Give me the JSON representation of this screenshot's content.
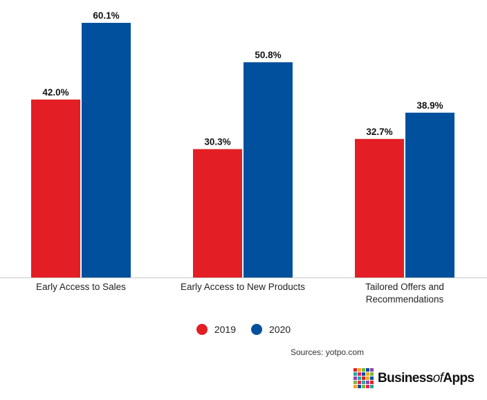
{
  "chart_data": {
    "type": "bar",
    "categories": [
      [
        "Early Access to Sales"
      ],
      [
        "Early Access to New Products"
      ],
      [
        "Tailored Offers and",
        "Recommendations"
      ]
    ],
    "series": [
      {
        "name": "2019",
        "color": "#e31e24",
        "values": [
          42.0,
          30.3,
          32.7
        ],
        "labels": [
          "42.0%",
          "30.3%",
          "32.7%"
        ]
      },
      {
        "name": "2020",
        "color": "#00509e",
        "values": [
          60.1,
          50.8,
          38.9
        ],
        "labels": [
          "60.1%",
          "50.8%",
          "38.9%"
        ]
      }
    ],
    "ylim": [
      0,
      65
    ],
    "grid": false,
    "legend_position": "bottom"
  },
  "source": "Sources: yotpo.com",
  "brand": {
    "part1": "Business",
    "part2": "of",
    "part3": "Apps"
  },
  "logo_colors": [
    "#e31e24",
    "#f5a623",
    "#7cb342",
    "#00509e",
    "#8e44ad",
    "#26a69a",
    "#e91e63",
    "#00509e",
    "#f5a623",
    "#7cb342",
    "#8e44ad",
    "#26a69a",
    "#e31e24",
    "#f5a623",
    "#00509e",
    "#7cb342",
    "#e91e63",
    "#26a69a",
    "#8e44ad",
    "#e31e24",
    "#f5a623",
    "#00509e",
    "#7cb342",
    "#e91e63",
    "#26a69a"
  ]
}
